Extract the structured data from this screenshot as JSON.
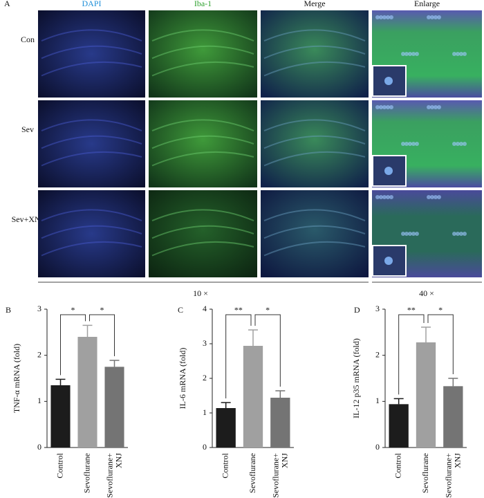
{
  "figure": {
    "label": "A",
    "columns": [
      "DAPI",
      "Iba-1",
      "Merge",
      "Enlarge"
    ],
    "rows": [
      "Con",
      "Sev",
      "Sev+XNJ"
    ],
    "scale_labels": [
      "10 ×",
      "40 ×"
    ]
  },
  "chart_data": [
    {
      "type": "bar",
      "panel": "B",
      "ylabel": "TNF-α mRNA (fold)",
      "categories": [
        "Control",
        "Sevoflurane",
        "Sevoflurane+ XNJ"
      ],
      "values": [
        1.35,
        2.4,
        1.75
      ],
      "errors": [
        0.13,
        0.25,
        0.14
      ],
      "colors": [
        "#1c1c1c",
        "#a0a0a0",
        "#747474"
      ],
      "ylim": [
        0,
        3
      ],
      "yticks": [
        0,
        1,
        2,
        3
      ],
      "comparisons": [
        {
          "pair": [
            "Control",
            "Sevoflurane"
          ],
          "label": "*"
        },
        {
          "pair": [
            "Sevoflurane",
            "Sevoflurane+ XNJ"
          ],
          "label": "*"
        }
      ]
    },
    {
      "type": "bar",
      "panel": "C",
      "ylabel": "IL-6 mRNA (fold)",
      "categories": [
        "Control",
        "Sevoflurane",
        "Sevoflurane+ XNJ"
      ],
      "values": [
        1.14,
        2.94,
        1.44
      ],
      "errors": [
        0.16,
        0.46,
        0.2
      ],
      "colors": [
        "#1c1c1c",
        "#a0a0a0",
        "#747474"
      ],
      "ylim": [
        0,
        4
      ],
      "yticks": [
        0,
        1,
        2,
        3,
        4
      ],
      "comparisons": [
        {
          "pair": [
            "Control",
            "Sevoflurane"
          ],
          "label": "**"
        },
        {
          "pair": [
            "Sevoflurane",
            "Sevoflurane+ XNJ"
          ],
          "label": "*"
        }
      ]
    },
    {
      "type": "bar",
      "panel": "D",
      "ylabel": "IL-12 p35 mRNA (fold)",
      "categories": [
        "Control",
        "Sevoflurane",
        "Sevoflurane+ XNJ"
      ],
      "values": [
        0.94,
        2.28,
        1.33
      ],
      "errors": [
        0.12,
        0.33,
        0.17
      ],
      "colors": [
        "#1c1c1c",
        "#a0a0a0",
        "#747474"
      ],
      "ylim": [
        0,
        3
      ],
      "yticks": [
        0,
        1,
        2,
        3
      ],
      "comparisons": [
        {
          "pair": [
            "Control",
            "Sevoflurane"
          ],
          "label": "**"
        },
        {
          "pair": [
            "Sevoflurane",
            "Sevoflurane+ XNJ"
          ],
          "label": "*"
        }
      ]
    }
  ]
}
